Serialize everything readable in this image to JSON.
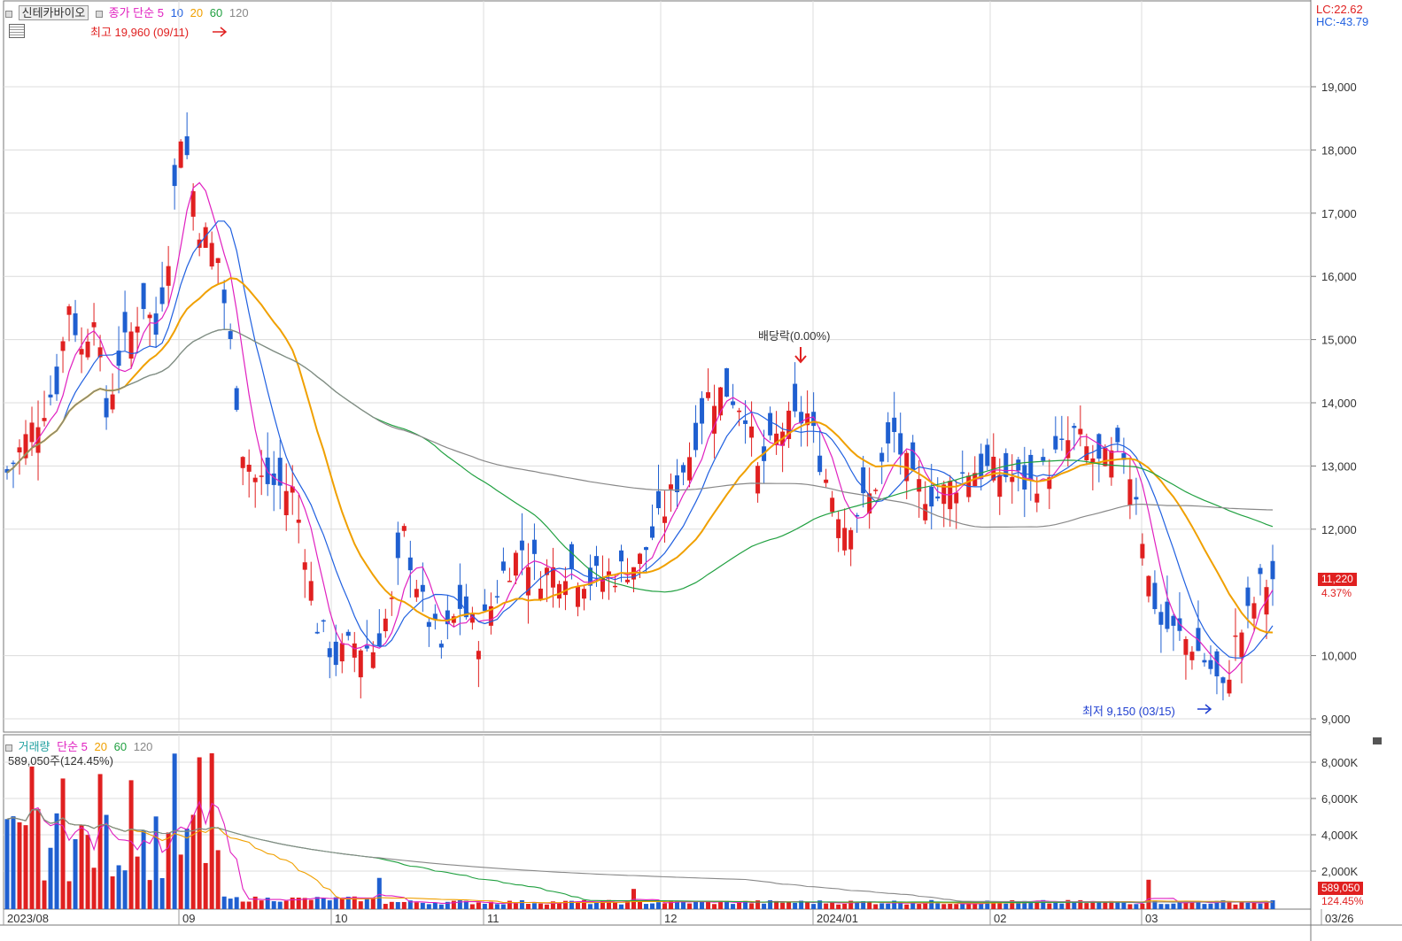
{
  "legend": {
    "stock_name": "신테카바이오",
    "ma_label": "종가 단순",
    "ma_periods": [
      "5",
      "10",
      "20",
      "60",
      "120"
    ],
    "ma_colors": [
      "#e020c0",
      "#2060e0",
      "#f0a000",
      "#20a040",
      "#888888"
    ],
    "lc_label": "LC:22.62",
    "hc_label": "HC:-43.79"
  },
  "annotations": {
    "high": "최고 19,960 (09/11)",
    "low": "최저 9,150 (03/15)",
    "dividend": "배당락(0.00%)"
  },
  "price_axis": {
    "ticks": [
      "19,000",
      "18,000",
      "17,000",
      "16,000",
      "15,000",
      "14,000",
      "13,000",
      "12,000",
      "10,000",
      "9,000"
    ],
    "tick_values": [
      19000,
      18000,
      17000,
      16000,
      15000,
      14000,
      13000,
      12000,
      10000,
      9000
    ],
    "current_price": "11,220",
    "change_pct": "4.37%"
  },
  "volume_legend": {
    "label": "거래량",
    "ma_label": "단순 5",
    "periods": [
      "20",
      "60",
      "120"
    ],
    "value_text": "589,050주(124.45%)"
  },
  "volume_axis": {
    "ticks": [
      "8,000K",
      "6,000K",
      "4,000K",
      "2,000K"
    ],
    "current_volume": "589,050",
    "volume_pct": "124.45%"
  },
  "date_axis": {
    "labels": [
      "2023/08",
      "09",
      "10",
      "11",
      "12",
      "2024/01",
      "02",
      "03",
      "03/26"
    ]
  },
  "colors": {
    "up": "#e02020",
    "down": "#1f5fd0",
    "grid": "#dcdcdc"
  }
}
